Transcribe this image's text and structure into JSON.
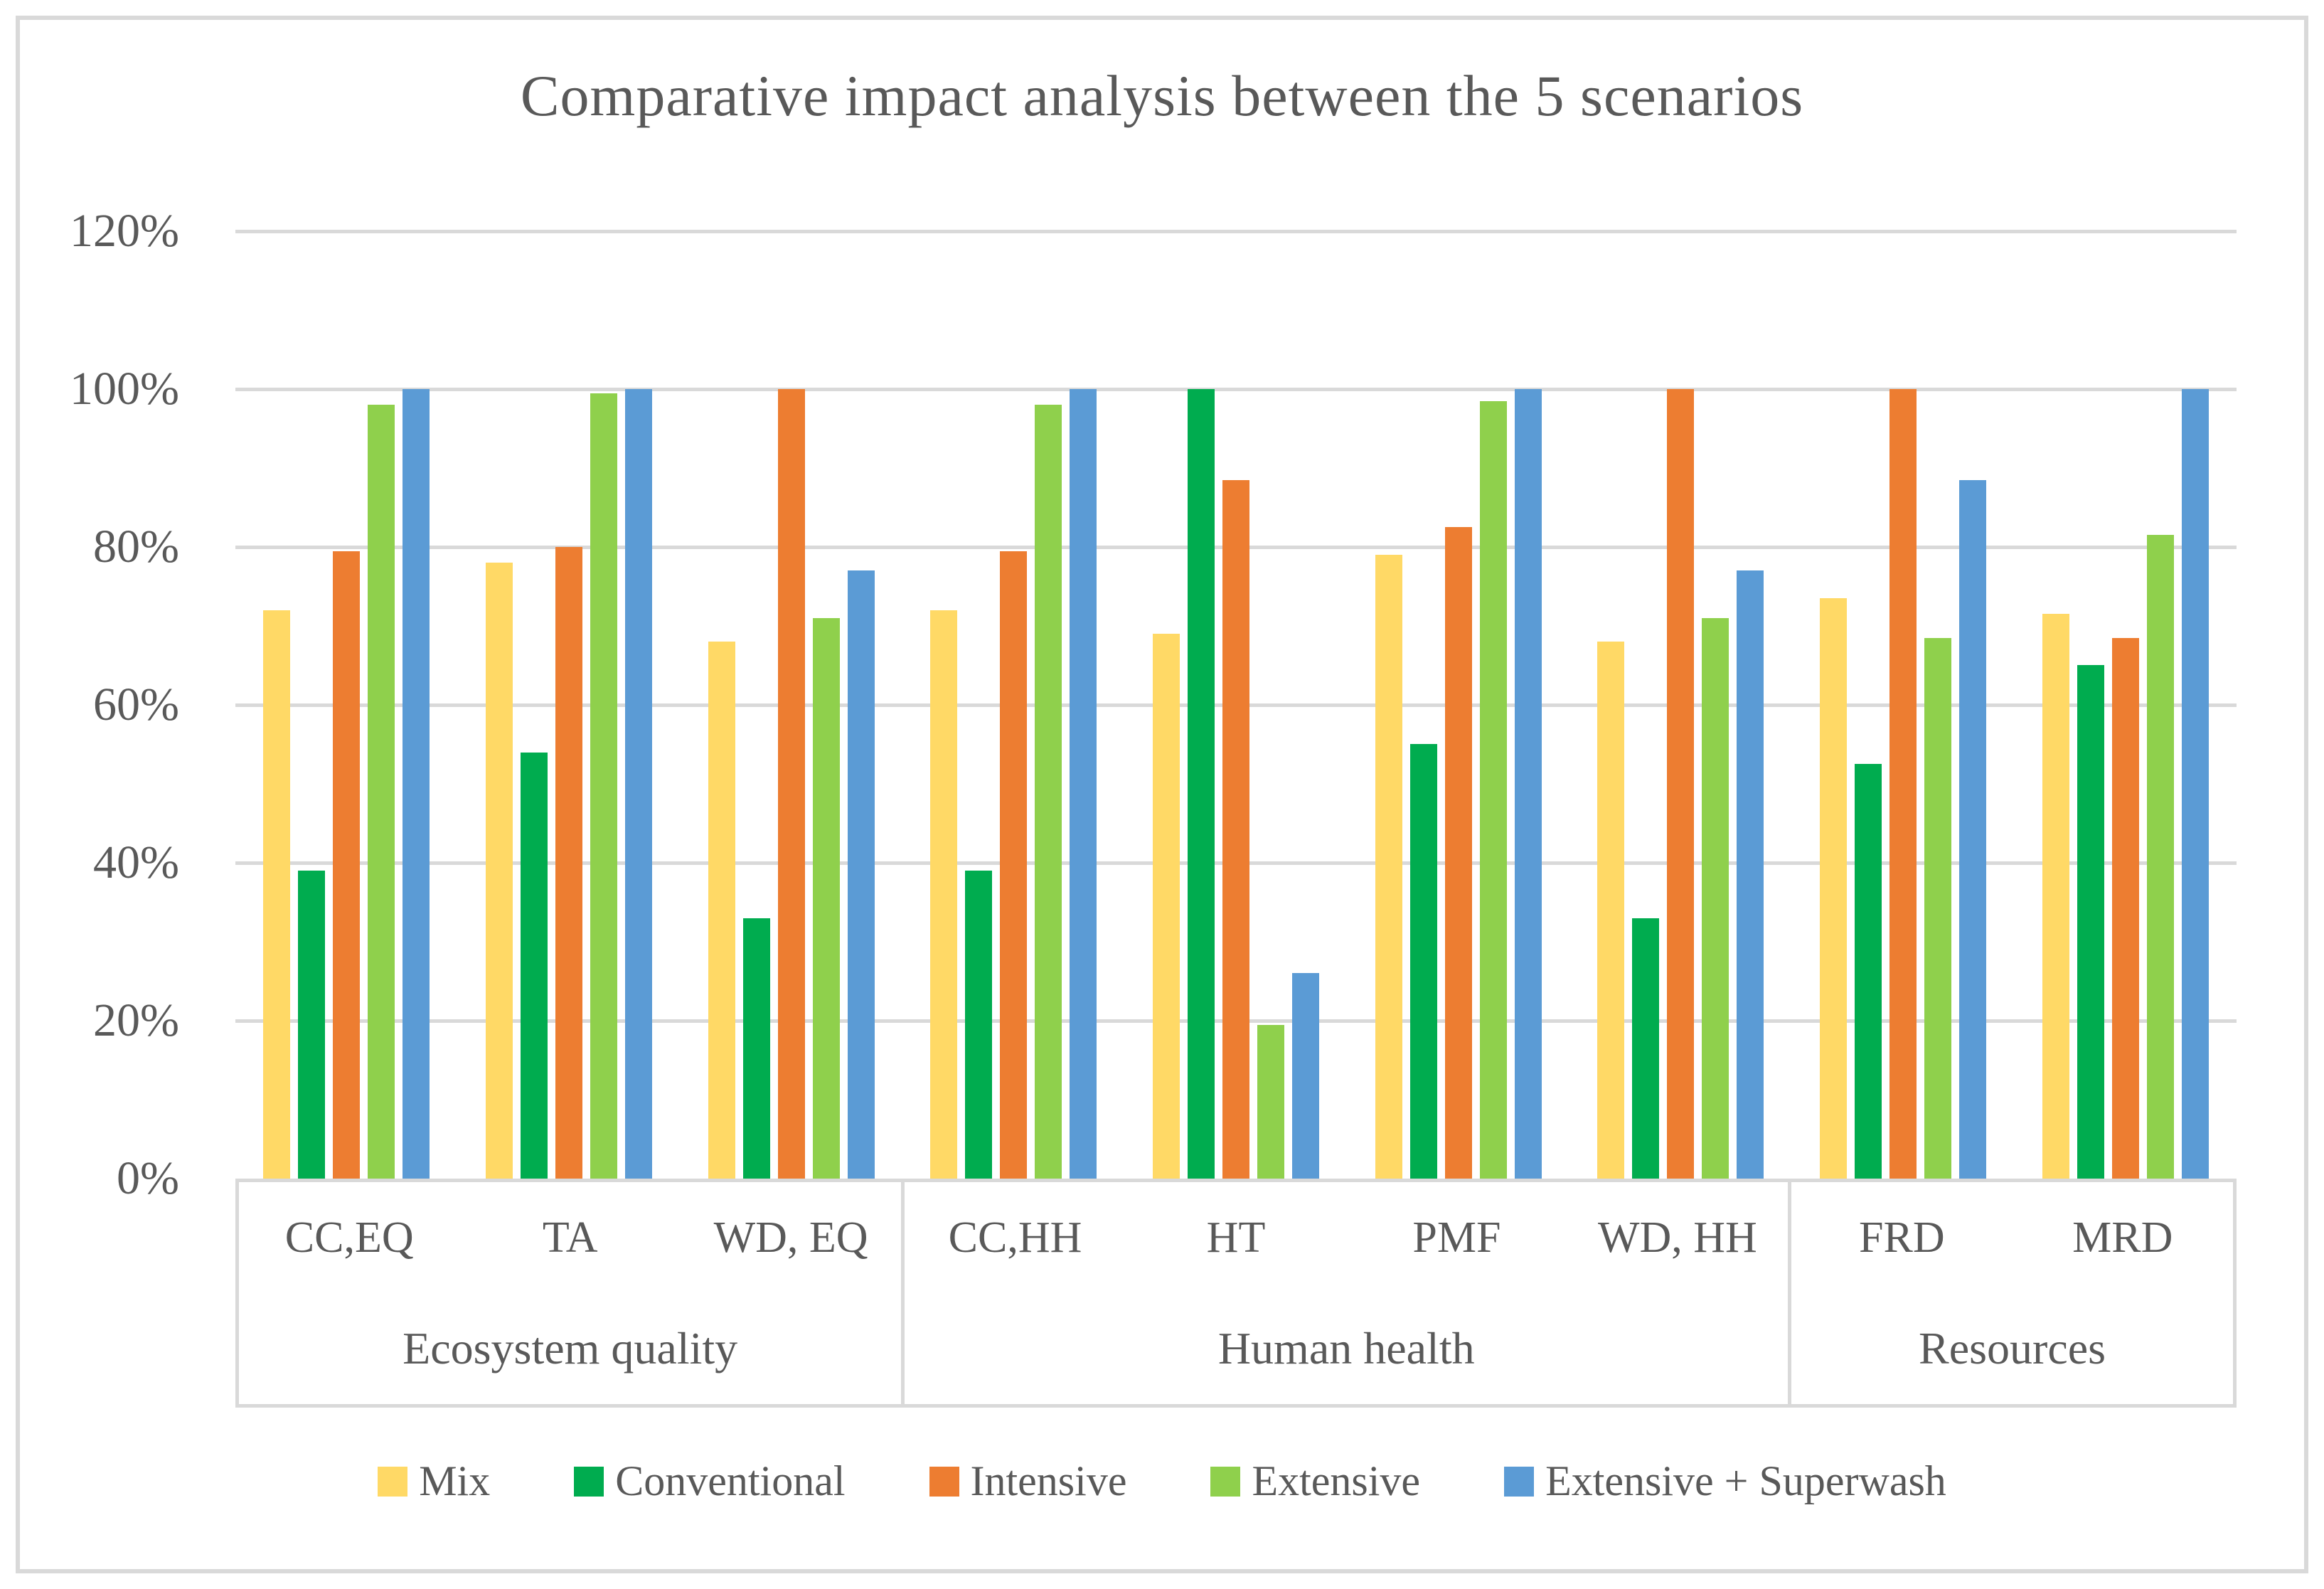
{
  "chart_data": {
    "type": "bar",
    "title": "Comparative impact analysis between the 5 scenarios",
    "categories": [
      "CC,EQ",
      "TA",
      "WD, EQ",
      "CC,HH",
      "HT",
      "PMF",
      "WD, HH",
      "FRD",
      "MRD"
    ],
    "category_groups": [
      {
        "label": "Ecosystem quality",
        "span": 3
      },
      {
        "label": "Human health",
        "span": 4
      },
      {
        "label": "Resources",
        "span": 2
      }
    ],
    "series": [
      {
        "name": "Mix",
        "color": "#FFD966",
        "values": [
          72,
          78,
          68,
          72,
          69,
          79,
          68,
          73.5,
          71.5
        ]
      },
      {
        "name": "Conventional",
        "color": "#00AC4F",
        "values": [
          39,
          54,
          33,
          39,
          100,
          55,
          33,
          52.5,
          65
        ]
      },
      {
        "name": "Intensive",
        "color": "#ED7D31",
        "values": [
          79.5,
          80,
          100,
          79.5,
          88.5,
          82.5,
          100,
          100,
          68.5
        ]
      },
      {
        "name": "Extensive",
        "color": "#8FD04C",
        "values": [
          98,
          99.5,
          71,
          98,
          19.5,
          98.5,
          71,
          68.5,
          81.5
        ]
      },
      {
        "name": "Extensive + Superwash",
        "color": "#5B9BD5",
        "values": [
          100,
          100,
          77,
          100,
          26,
          100,
          77,
          88.5,
          100
        ]
      }
    ],
    "y_axis": {
      "min": 0,
      "max": 120,
      "tick_step": 20,
      "tick_labels": [
        "0%",
        "20%",
        "40%",
        "60%",
        "80%",
        "100%",
        "120%"
      ]
    },
    "grid": true,
    "legend_position": "bottom"
  },
  "colors": {
    "text": "#595959",
    "gridline": "#d9d9d9",
    "frame_border": "#d9d9d9",
    "background": "#ffffff"
  }
}
